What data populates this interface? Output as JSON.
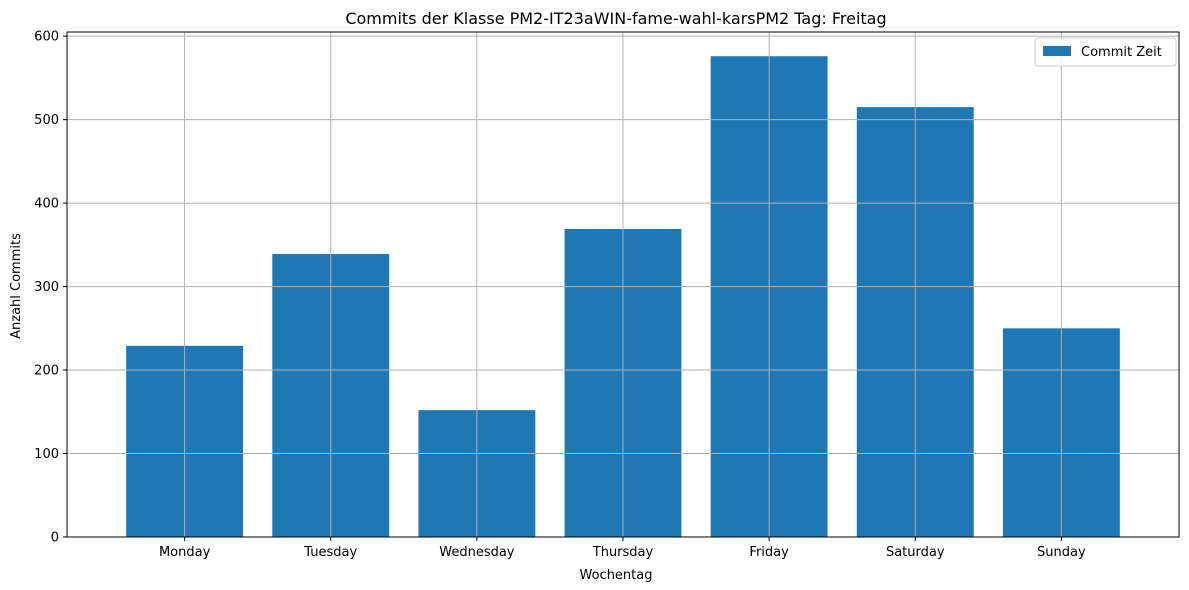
{
  "chart_data": {
    "type": "bar",
    "title": "Commits der Klasse PM2-IT23aWIN-fame-wahl-karsPM2 Tag: Freitag",
    "xlabel": "Wochentag",
    "ylabel": "Anzahl Commits",
    "categories": [
      "Monday",
      "Tuesday",
      "Wednesday",
      "Thursday",
      "Friday",
      "Saturday",
      "Sunday"
    ],
    "series": [
      {
        "name": "Commit Zeit",
        "values": [
          229,
          339,
          152,
          369,
          576,
          515,
          250
        ],
        "color": "#1f77b4"
      }
    ],
    "ylim": [
      0,
      605
    ],
    "yticks": [
      0,
      100,
      200,
      300,
      400,
      500,
      600
    ],
    "grid": true,
    "legend_position": "top-right"
  }
}
